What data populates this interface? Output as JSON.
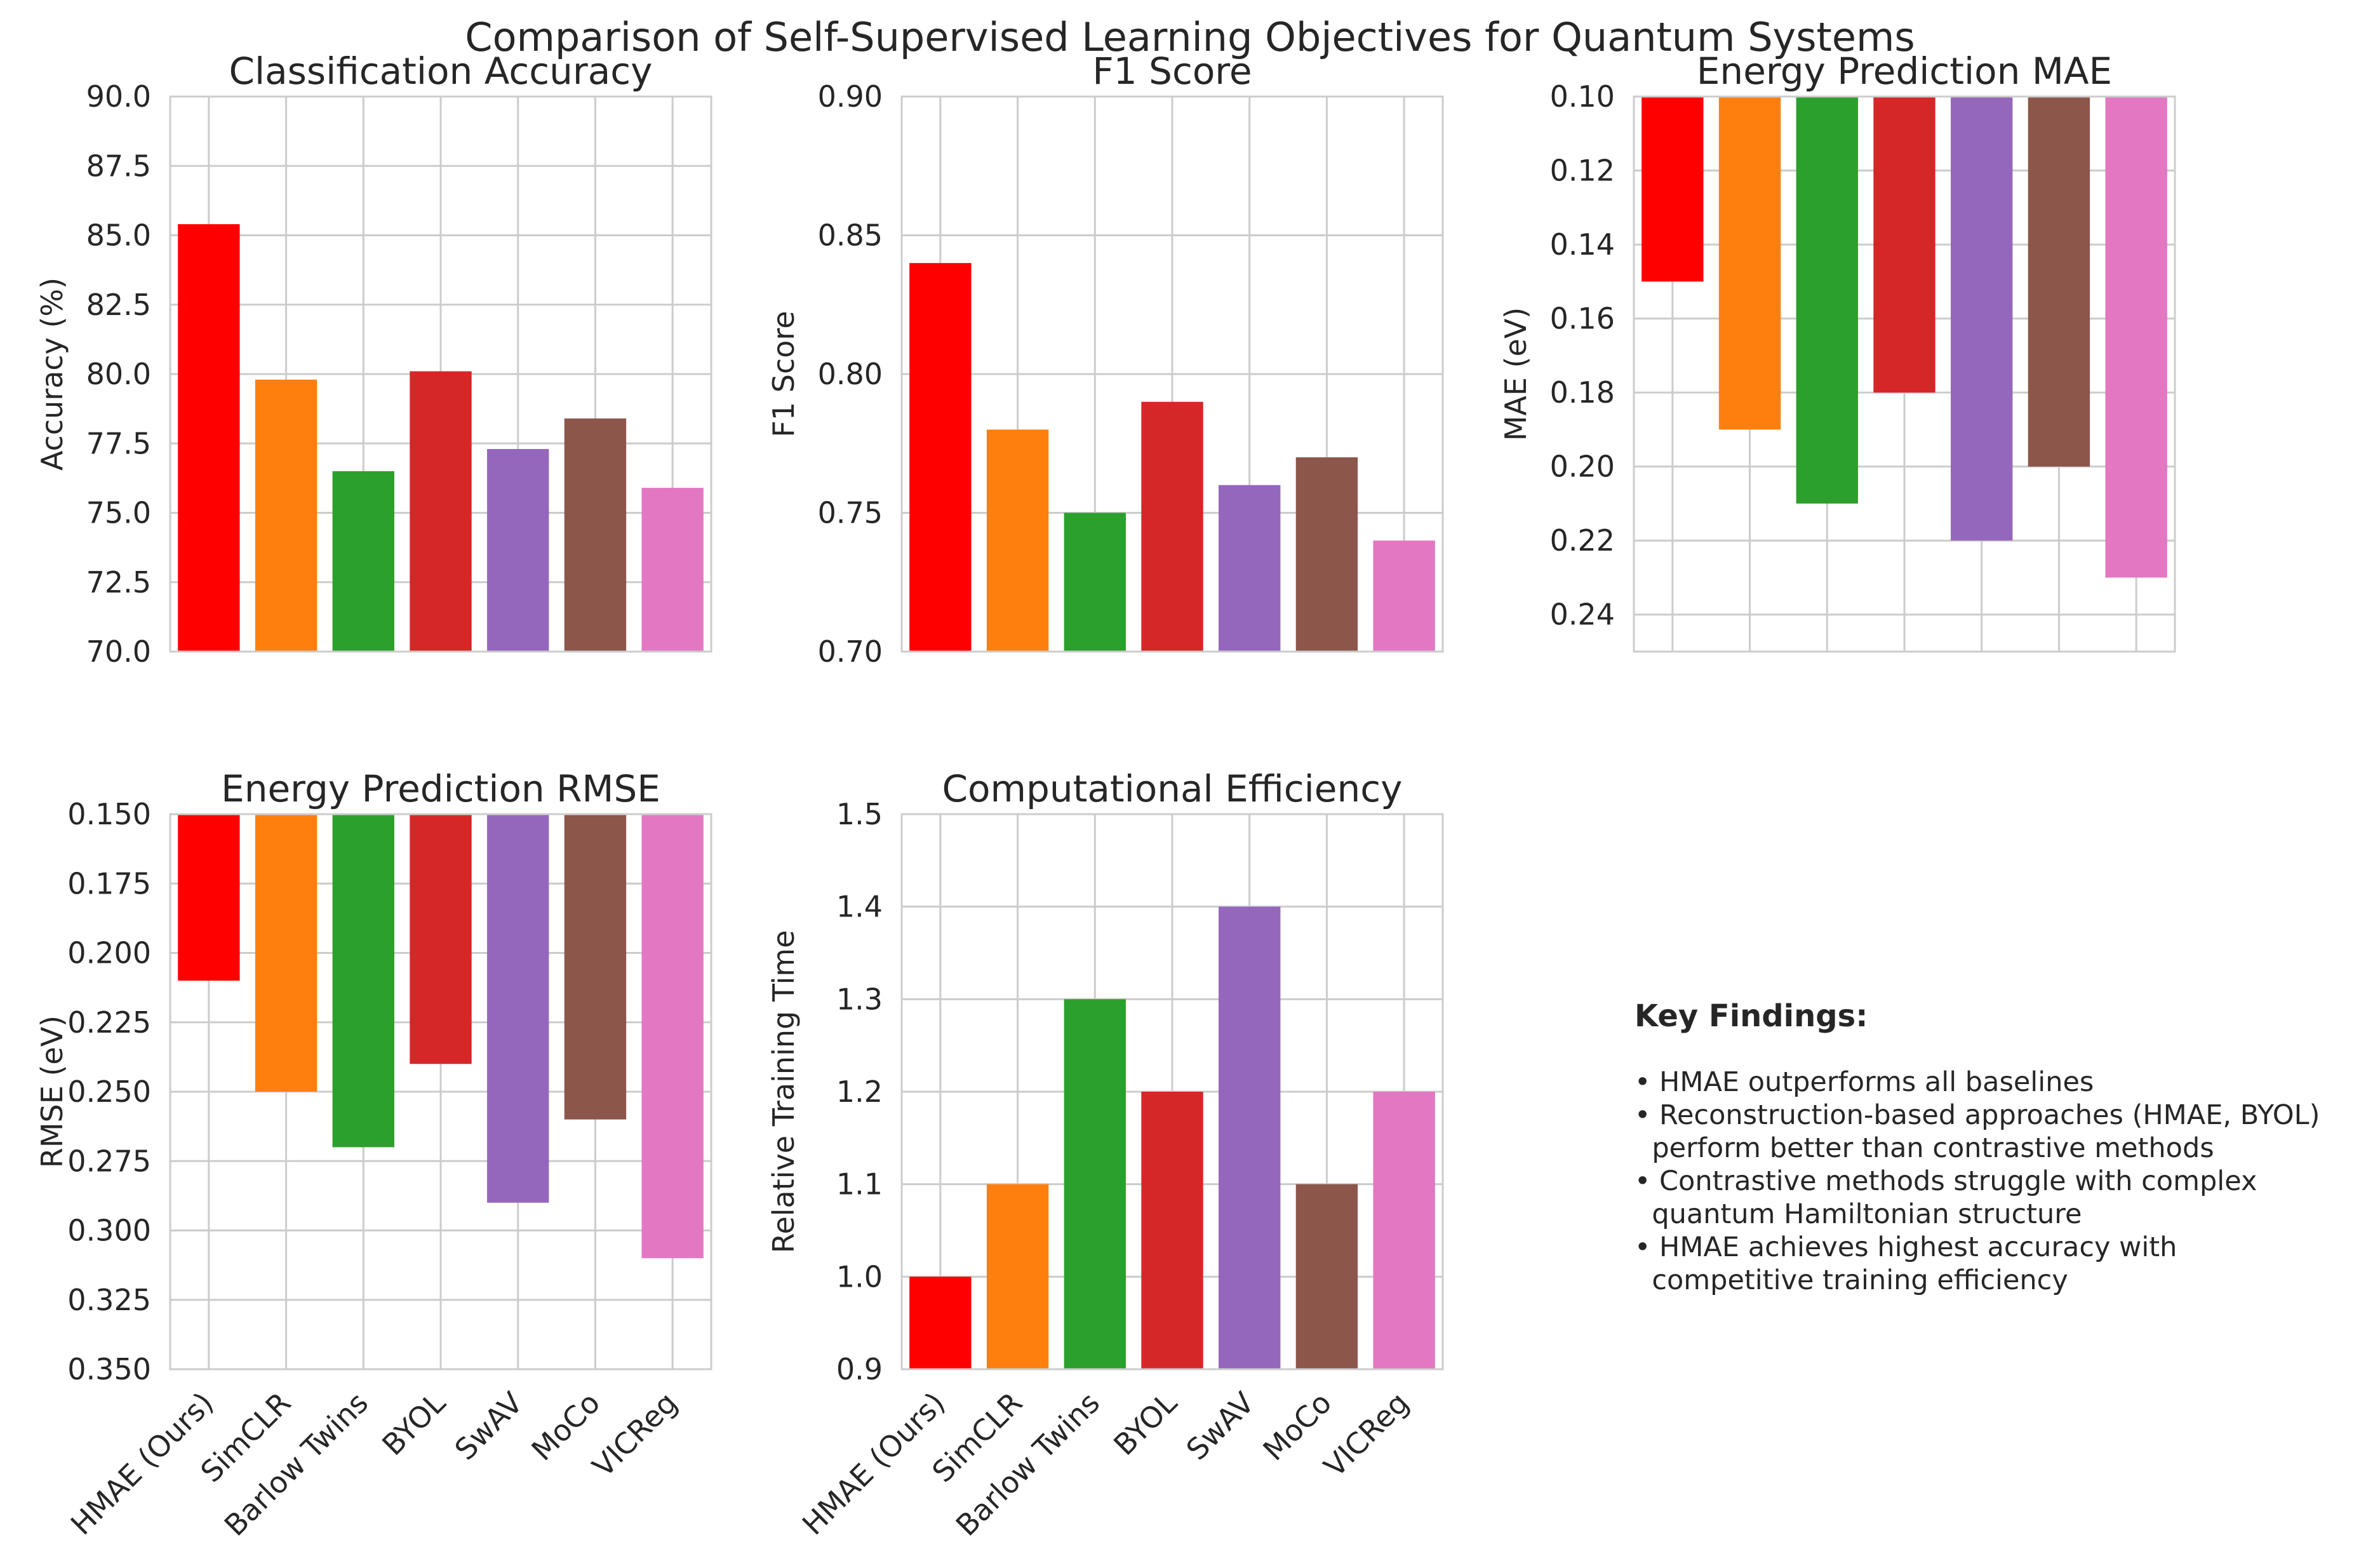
{
  "figure": {
    "title": "Comparison of Self-Supervised Learning Objectives for Quantum Systems"
  },
  "chart_data": [
    {
      "type": "bar",
      "title": "Classification Accuracy",
      "xlabel": "",
      "ylabel": "Accuracy (%)",
      "categories": [
        "HMAE (Ours)",
        "SimCLR",
        "Barlow Twins",
        "BYOL",
        "SwAV",
        "MoCo",
        "VICReg"
      ],
      "values": [
        85.4,
        79.8,
        76.5,
        80.1,
        77.3,
        78.4,
        75.9
      ],
      "ylim": [
        70,
        90
      ],
      "yticks": [
        "70.0",
        "72.5",
        "75.0",
        "77.5",
        "80.0",
        "82.5",
        "85.0",
        "87.5",
        "90.0"
      ],
      "inverted": false,
      "show_xticklabels": false,
      "grid": true
    },
    {
      "type": "bar",
      "title": "F1 Score",
      "xlabel": "",
      "ylabel": "F1 Score",
      "categories": [
        "HMAE (Ours)",
        "SimCLR",
        "Barlow Twins",
        "BYOL",
        "SwAV",
        "MoCo",
        "VICReg"
      ],
      "values": [
        0.84,
        0.78,
        0.75,
        0.79,
        0.76,
        0.77,
        0.74
      ],
      "ylim": [
        0.7,
        0.9
      ],
      "yticks": [
        "0.70",
        "0.75",
        "0.80",
        "0.85",
        "0.90"
      ],
      "inverted": false,
      "show_xticklabels": false,
      "grid": true
    },
    {
      "type": "bar",
      "title": "Energy Prediction MAE",
      "xlabel": "",
      "ylabel": "MAE (eV)",
      "categories": [
        "HMAE (Ours)",
        "SimCLR",
        "Barlow Twins",
        "BYOL",
        "SwAV",
        "MoCo",
        "VICReg"
      ],
      "values": [
        0.15,
        0.19,
        0.21,
        0.18,
        0.22,
        0.2,
        0.23
      ],
      "ylim": [
        0.25,
        0.1
      ],
      "yticks": [
        "0.10",
        "0.12",
        "0.14",
        "0.16",
        "0.18",
        "0.20",
        "0.22",
        "0.24"
      ],
      "inverted": true,
      "show_xticklabels": false,
      "grid": true
    },
    {
      "type": "bar",
      "title": "Energy Prediction RMSE",
      "xlabel": "",
      "ylabel": "RMSE (eV)",
      "categories": [
        "HMAE (Ours)",
        "SimCLR",
        "Barlow Twins",
        "BYOL",
        "SwAV",
        "MoCo",
        "VICReg"
      ],
      "values": [
        0.21,
        0.25,
        0.27,
        0.24,
        0.29,
        0.26,
        0.31
      ],
      "ylim": [
        0.35,
        0.15
      ],
      "yticks": [
        "0.150",
        "0.175",
        "0.200",
        "0.225",
        "0.250",
        "0.275",
        "0.300",
        "0.325",
        "0.350"
      ],
      "inverted": true,
      "show_xticklabels": true,
      "grid": true
    },
    {
      "type": "bar",
      "title": "Computational Efficiency",
      "xlabel": "",
      "ylabel": "Relative Training Time",
      "categories": [
        "HMAE (Ours)",
        "SimCLR",
        "Barlow Twins",
        "BYOL",
        "SwAV",
        "MoCo",
        "VICReg"
      ],
      "values": [
        1.0,
        1.1,
        1.3,
        1.2,
        1.4,
        1.1,
        1.2
      ],
      "ylim": [
        0.9,
        1.5
      ],
      "yticks": [
        "0.9",
        "1.0",
        "1.1",
        "1.2",
        "1.3",
        "1.4",
        "1.5"
      ],
      "inverted": false,
      "show_xticklabels": true,
      "grid": true
    }
  ],
  "colors": [
    "#ff0000",
    "#ff7f0e",
    "#2ca02c",
    "#d62728",
    "#9467bd",
    "#8c564b",
    "#e377c2"
  ],
  "findings": {
    "title": "Key Findings:",
    "items": [
      "• HMAE outperforms all baselines",
      "• Reconstruction-based approaches (HMAE, BYOL)\n  perform better than contrastive methods",
      "• Contrastive methods struggle with complex\n  quantum Hamiltonian structure",
      "• HMAE achieves highest accuracy with\n  competitive training efficiency"
    ]
  }
}
